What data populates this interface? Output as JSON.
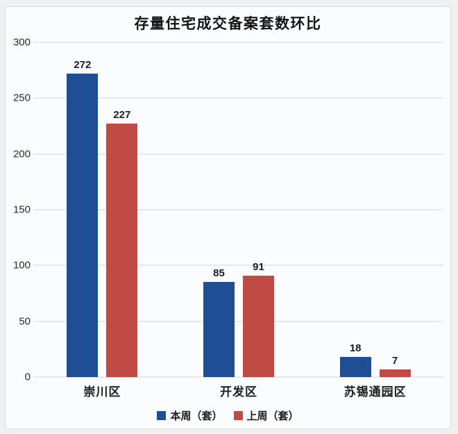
{
  "chart_data": {
    "type": "bar",
    "title": "存量住宅成交备案套数环比",
    "categories": [
      "崇川区",
      "开发区",
      "苏锡通园区"
    ],
    "series": [
      {
        "name": "本周（套）",
        "color": "#1F4E94",
        "values": [
          272,
          85,
          18
        ]
      },
      {
        "name": "上周（套）",
        "color": "#C04A44",
        "values": [
          227,
          91,
          7
        ]
      }
    ],
    "ylim": [
      0,
      300
    ],
    "yticks": [
      0,
      50,
      100,
      150,
      200,
      250,
      300
    ],
    "xlabel": "",
    "ylabel": "",
    "grid": true,
    "legend_position": "bottom",
    "colors": {
      "background": "#fbfcfd",
      "page_background": "#eef0f2",
      "gridline": "#e6e8ec",
      "text": "#1c1c1c"
    }
  }
}
